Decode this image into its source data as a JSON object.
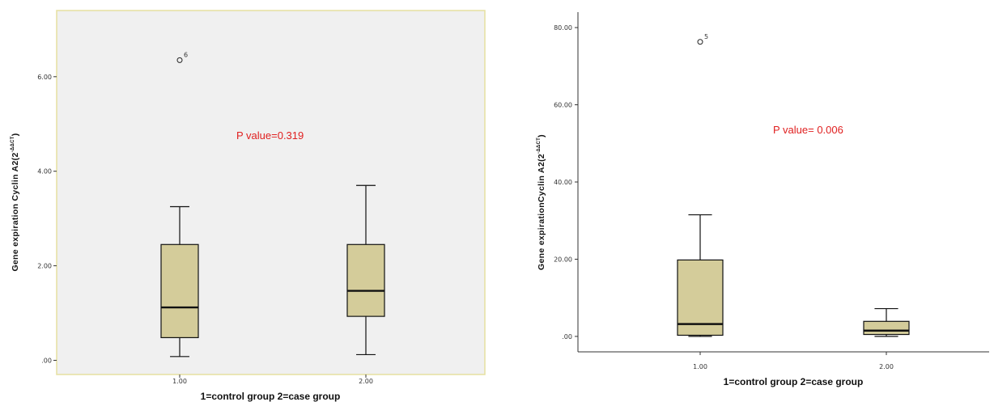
{
  "chart_data": [
    {
      "type": "box",
      "ylabel_main": "Gene expiration Cyclin  A2(2",
      "ylabel_sup": "-ΔΔCT",
      "ylabel_end": ")",
      "xlabel": "1=control group   2=case group",
      "annotation": "P  value=0.319",
      "ylim": [
        -0.3,
        7.4
      ],
      "yticks": [
        {
          "value": 0,
          "label": ".00"
        },
        {
          "value": 2,
          "label": "2.00"
        },
        {
          "value": 4,
          "label": "4.00"
        },
        {
          "value": 6,
          "label": "6.00"
        }
      ],
      "categories": [
        "1.00",
        "2.00"
      ],
      "boxes": [
        {
          "category": "1.00",
          "min": 0.08,
          "q1": 0.48,
          "median": 1.12,
          "q3": 2.45,
          "max": 3.25,
          "outliers": [
            {
              "value": 6.35,
              "label": "6"
            }
          ]
        },
        {
          "category": "2.00",
          "min": 0.12,
          "q1": 0.93,
          "median": 1.47,
          "q3": 2.45,
          "max": 3.7,
          "outliers": []
        }
      ],
      "colors": {
        "box_fill": "#d4cc9a",
        "plot_bg": "#f0f0f0",
        "frame": "#e6e0a0",
        "annotation": "#e02020"
      }
    },
    {
      "type": "box",
      "ylabel_main": "Gene expirationCyclin A2(2",
      "ylabel_sup": "-ΔΔCT",
      "ylabel_end": ")",
      "xlabel": "1=control group   2=case group",
      "annotation": "P value= 0.006",
      "ylim": [
        -4,
        84
      ],
      "yticks": [
        {
          "value": 0,
          "label": ".00"
        },
        {
          "value": 20,
          "label": "20.00"
        },
        {
          "value": 40,
          "label": "40.00"
        },
        {
          "value": 60,
          "label": "60.00"
        },
        {
          "value": 80,
          "label": "80.00"
        }
      ],
      "categories": [
        "1.00",
        "2.00"
      ],
      "boxes": [
        {
          "category": "1.00",
          "min": 0.0,
          "q1": 0.3,
          "median": 3.2,
          "q3": 19.8,
          "max": 31.5,
          "outliers": [
            {
              "value": 76.3,
              "label": "5"
            }
          ]
        },
        {
          "category": "2.00",
          "min": 0.0,
          "q1": 0.5,
          "median": 1.5,
          "q3": 3.9,
          "max": 7.2,
          "outliers": []
        }
      ],
      "colors": {
        "box_fill": "#d4cc9a",
        "plot_bg": "#ffffff",
        "frame": "#333333",
        "annotation": "#e02020"
      }
    }
  ]
}
